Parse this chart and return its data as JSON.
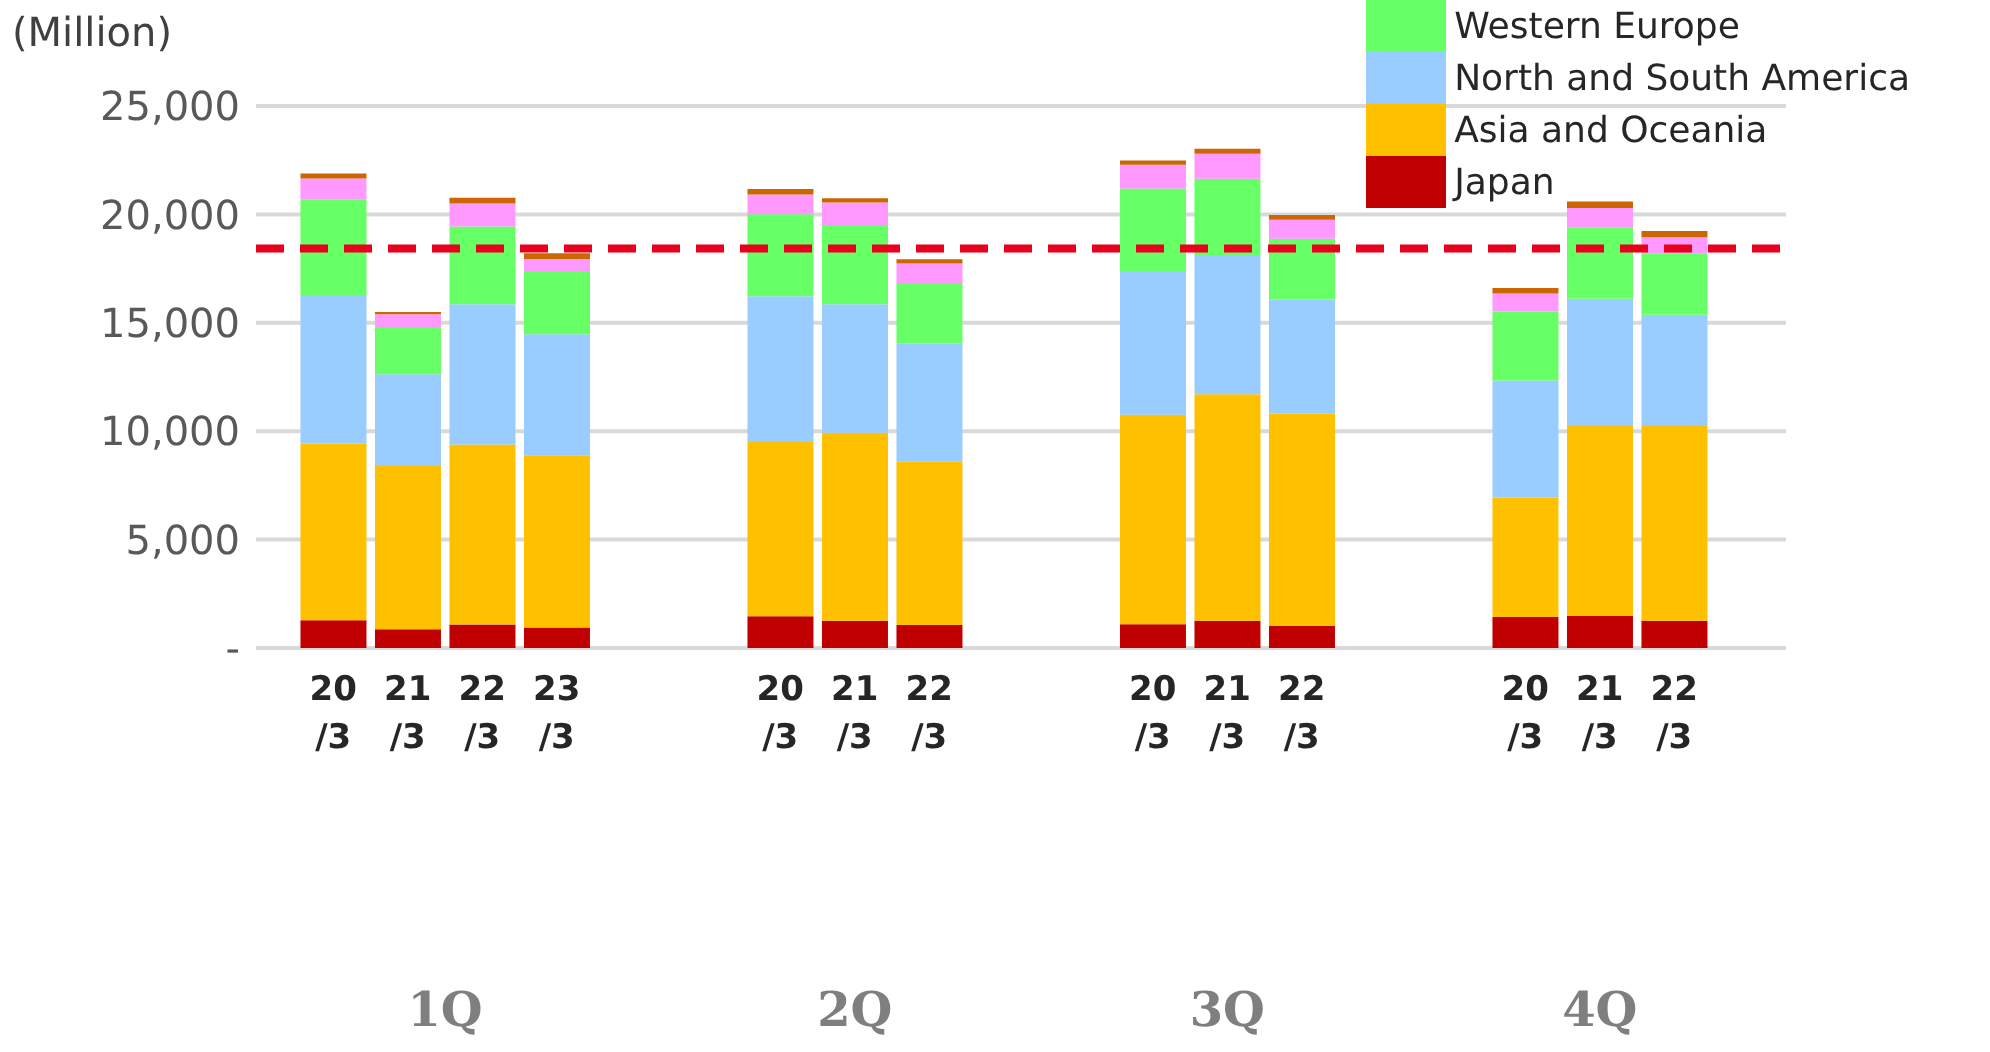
{
  "chart_data": {
    "type": "bar",
    "stacked": true,
    "ylabel": "(Million)",
    "categories": [
      "20/3",
      "21/3",
      "22/3",
      "23/3",
      null,
      null,
      "20/3",
      "21/3",
      "22/3",
      null,
      null,
      "20/3",
      "21/3",
      "22/3",
      null,
      null,
      "20/3",
      "21/3",
      "22/3",
      null
    ],
    "series": [
      {
        "name": "Japan",
        "color": "#c00000",
        "values": [
          1280,
          870,
          1080,
          940,
          null,
          null,
          1460,
          1260,
          1060,
          null,
          null,
          1100,
          1260,
          1030,
          null,
          null,
          1430,
          1480,
          1260,
          null
        ]
      },
      {
        "name": "Asia and Oceania",
        "color": "#ffc000",
        "values": [
          8150,
          7530,
          8310,
          7950,
          null,
          null,
          8040,
          8670,
          7550,
          null,
          null,
          9660,
          10440,
          9770,
          null,
          null,
          5510,
          8760,
          8980,
          null
        ]
      },
      {
        "name": "North and South America",
        "color": "#99ccff",
        "values": [
          6810,
          4230,
          6470,
          5580,
          null,
          null,
          6720,
          5930,
          5420,
          null,
          null,
          6630,
          6380,
          5280,
          null,
          null,
          5400,
          5870,
          5130,
          null
        ]
      },
      {
        "name": "Western Europe",
        "color": "#66ff66",
        "values": [
          4440,
          2130,
          3580,
          2870,
          null,
          null,
          3790,
          3610,
          2760,
          null,
          null,
          3800,
          3560,
          2800,
          null,
          null,
          3180,
          3270,
          2840,
          null
        ]
      },
      {
        "color": "#ff99ff",
        "values": [
          980,
          630,
          1060,
          600,
          null,
          null,
          910,
          1080,
          940,
          null,
          null,
          1100,
          1160,
          870,
          null,
          null,
          830,
          920,
          740,
          null
        ]
      },
      {
        "color": "#cc6600",
        "values": [
          230,
          110,
          270,
          270,
          null,
          null,
          250,
          200,
          200,
          null,
          null,
          200,
          230,
          220,
          null,
          null,
          250,
          290,
          290,
          null
        ]
      }
    ],
    "ylim": [
      0,
      25000
    ],
    "yticks": [
      {
        "value": 0,
        "label": "-"
      },
      {
        "value": 5000,
        "label": "5,000"
      },
      {
        "value": 10000,
        "label": "10,000"
      },
      {
        "value": 15000,
        "label": "15,000"
      },
      {
        "value": 20000,
        "label": "20,000"
      },
      {
        "value": 25000,
        "label": "25,000"
      }
    ],
    "ref_lines": [
      {
        "axis": "y",
        "value": 18430,
        "color": "#e8001c",
        "line_style": "dashed"
      }
    ],
    "annotations": [
      "1Q",
      "2Q",
      "3Q",
      "4Q"
    ],
    "grid": "y",
    "legend": "top right"
  }
}
